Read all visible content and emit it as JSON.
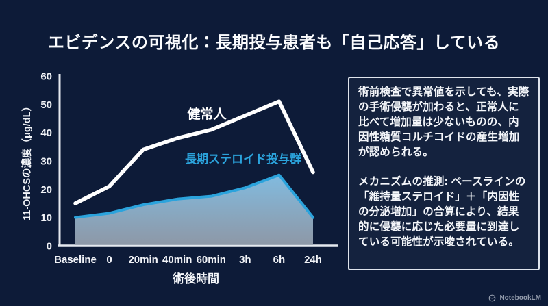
{
  "slide": {
    "title": "エビデンスの可視化：長期投与患者も「自己応答」している"
  },
  "chart_data": {
    "type": "line",
    "categories": [
      "Baseline",
      "0",
      "20min",
      "40min",
      "60min",
      "3h",
      "6h",
      "24h"
    ],
    "series": [
      {
        "name": "健常人",
        "color": "#ffffff",
        "values": [
          15,
          21,
          34,
          38,
          41,
          46,
          51,
          26
        ],
        "area": false,
        "width": 5.5
      },
      {
        "name": "長期ステロイド投与群",
        "color": "#2ba3dc",
        "values": [
          10,
          11.5,
          14.5,
          16.5,
          17.5,
          20.5,
          25,
          10
        ],
        "area": true,
        "width": 4
      }
    ],
    "xlabel": "術後時間",
    "ylabel": "11-OHCSの濃度（μg/dL）",
    "ylim": [
      0,
      60
    ],
    "yticks": [
      0,
      10,
      20,
      30,
      40,
      50,
      60
    ],
    "grid": false,
    "legend_position": "inline-labels-on-plot"
  },
  "info_box": {
    "paragraph1": "術前検査で異常値を示しても、実際の手術侵襲が加わると、正常人に比べて増加量は少ないものの、内因性糖質コルチコイドの産生増加が認められる。",
    "paragraph2": "メカニズムの推測: ベースラインの「維持量ステロイド」＋「内因性の分泌増加」の合算により、結果的に侵襲に応じた必要量に到達している可能性が示唆されている。"
  },
  "footer": {
    "logo_text": "NotebookLM"
  },
  "colors": {
    "background": "#0d1b38",
    "axis": "#e5e9ef",
    "accent_blue": "#2ba3dc",
    "area_top": "#86c2e7",
    "area_bottom": "#9fa9b6",
    "text": "#ffffff",
    "footer_text": "#939cac"
  }
}
